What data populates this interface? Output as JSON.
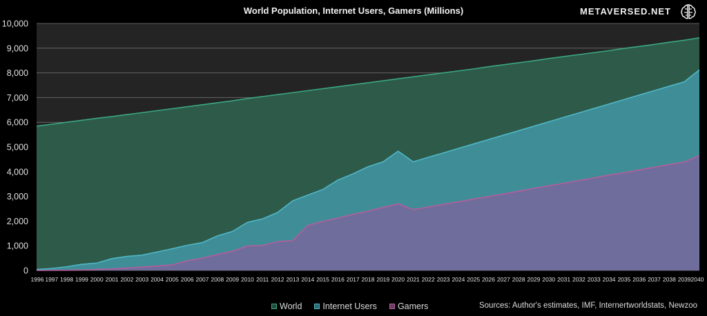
{
  "brand": "METAVERSED.NET",
  "chart_data": {
    "type": "area",
    "title": "World Population, Internet Users, Gamers (Millions)",
    "x": [
      1996,
      1997,
      1998,
      1999,
      2000,
      2001,
      2002,
      2003,
      2004,
      2005,
      2006,
      2007,
      2008,
      2009,
      2010,
      2011,
      2012,
      2013,
      2014,
      2015,
      2016,
      2017,
      2018,
      2019,
      2020,
      2021,
      2022,
      2023,
      2024,
      2025,
      2026,
      2027,
      2028,
      2029,
      2030,
      2031,
      2032,
      2033,
      2034,
      2035,
      2036,
      2037,
      2038,
      2039,
      2040
    ],
    "ylim": [
      0,
      10000
    ],
    "yticks": [
      "0",
      "1,000",
      "2,000",
      "3,000",
      "4,000",
      "5,000",
      "6,000",
      "7,000",
      "8,000",
      "9,000",
      "10,000"
    ],
    "grid": true,
    "legend": "bottom",
    "series": [
      {
        "name": "World",
        "color": "#3aa883",
        "values": [
          5840,
          5920,
          6000,
          6080,
          6160,
          6230,
          6310,
          6390,
          6470,
          6550,
          6630,
          6710,
          6790,
          6870,
          6960,
          7040,
          7120,
          7200,
          7280,
          7360,
          7440,
          7520,
          7600,
          7680,
          7760,
          7840,
          7920,
          8000,
          8080,
          8160,
          8250,
          8330,
          8410,
          8490,
          8580,
          8660,
          8740,
          8820,
          8900,
          8990,
          9070,
          9150,
          9240,
          9320,
          9420
        ]
      },
      {
        "name": "Internet Users",
        "color": "#4fb8c8",
        "values": [
          40,
          80,
          150,
          250,
          300,
          480,
          570,
          620,
          750,
          880,
          1020,
          1130,
          1400,
          1580,
          1950,
          2090,
          2350,
          2820,
          3050,
          3280,
          3660,
          3910,
          4200,
          4400,
          4830,
          4400,
          4580,
          4760,
          4940,
          5120,
          5300,
          5480,
          5660,
          5840,
          6020,
          6200,
          6380,
          6560,
          6740,
          6920,
          7100,
          7280,
          7460,
          7640,
          8120
        ]
      },
      {
        "name": "Gamers",
        "color": "#b45e9e",
        "values": [
          0,
          5,
          10,
          20,
          40,
          60,
          100,
          140,
          180,
          230,
          390,
          500,
          650,
          780,
          990,
          1010,
          1170,
          1210,
          1820,
          1990,
          2120,
          2270,
          2400,
          2550,
          2700,
          2460,
          2570,
          2680,
          2780,
          2890,
          3000,
          3100,
          3210,
          3320,
          3430,
          3530,
          3640,
          3750,
          3860,
          3960,
          4070,
          4180,
          4290,
          4390,
          4650
        ]
      }
    ]
  },
  "source": "Sources: Author's estimates, IMF, Internertworldstats, Newzoo"
}
